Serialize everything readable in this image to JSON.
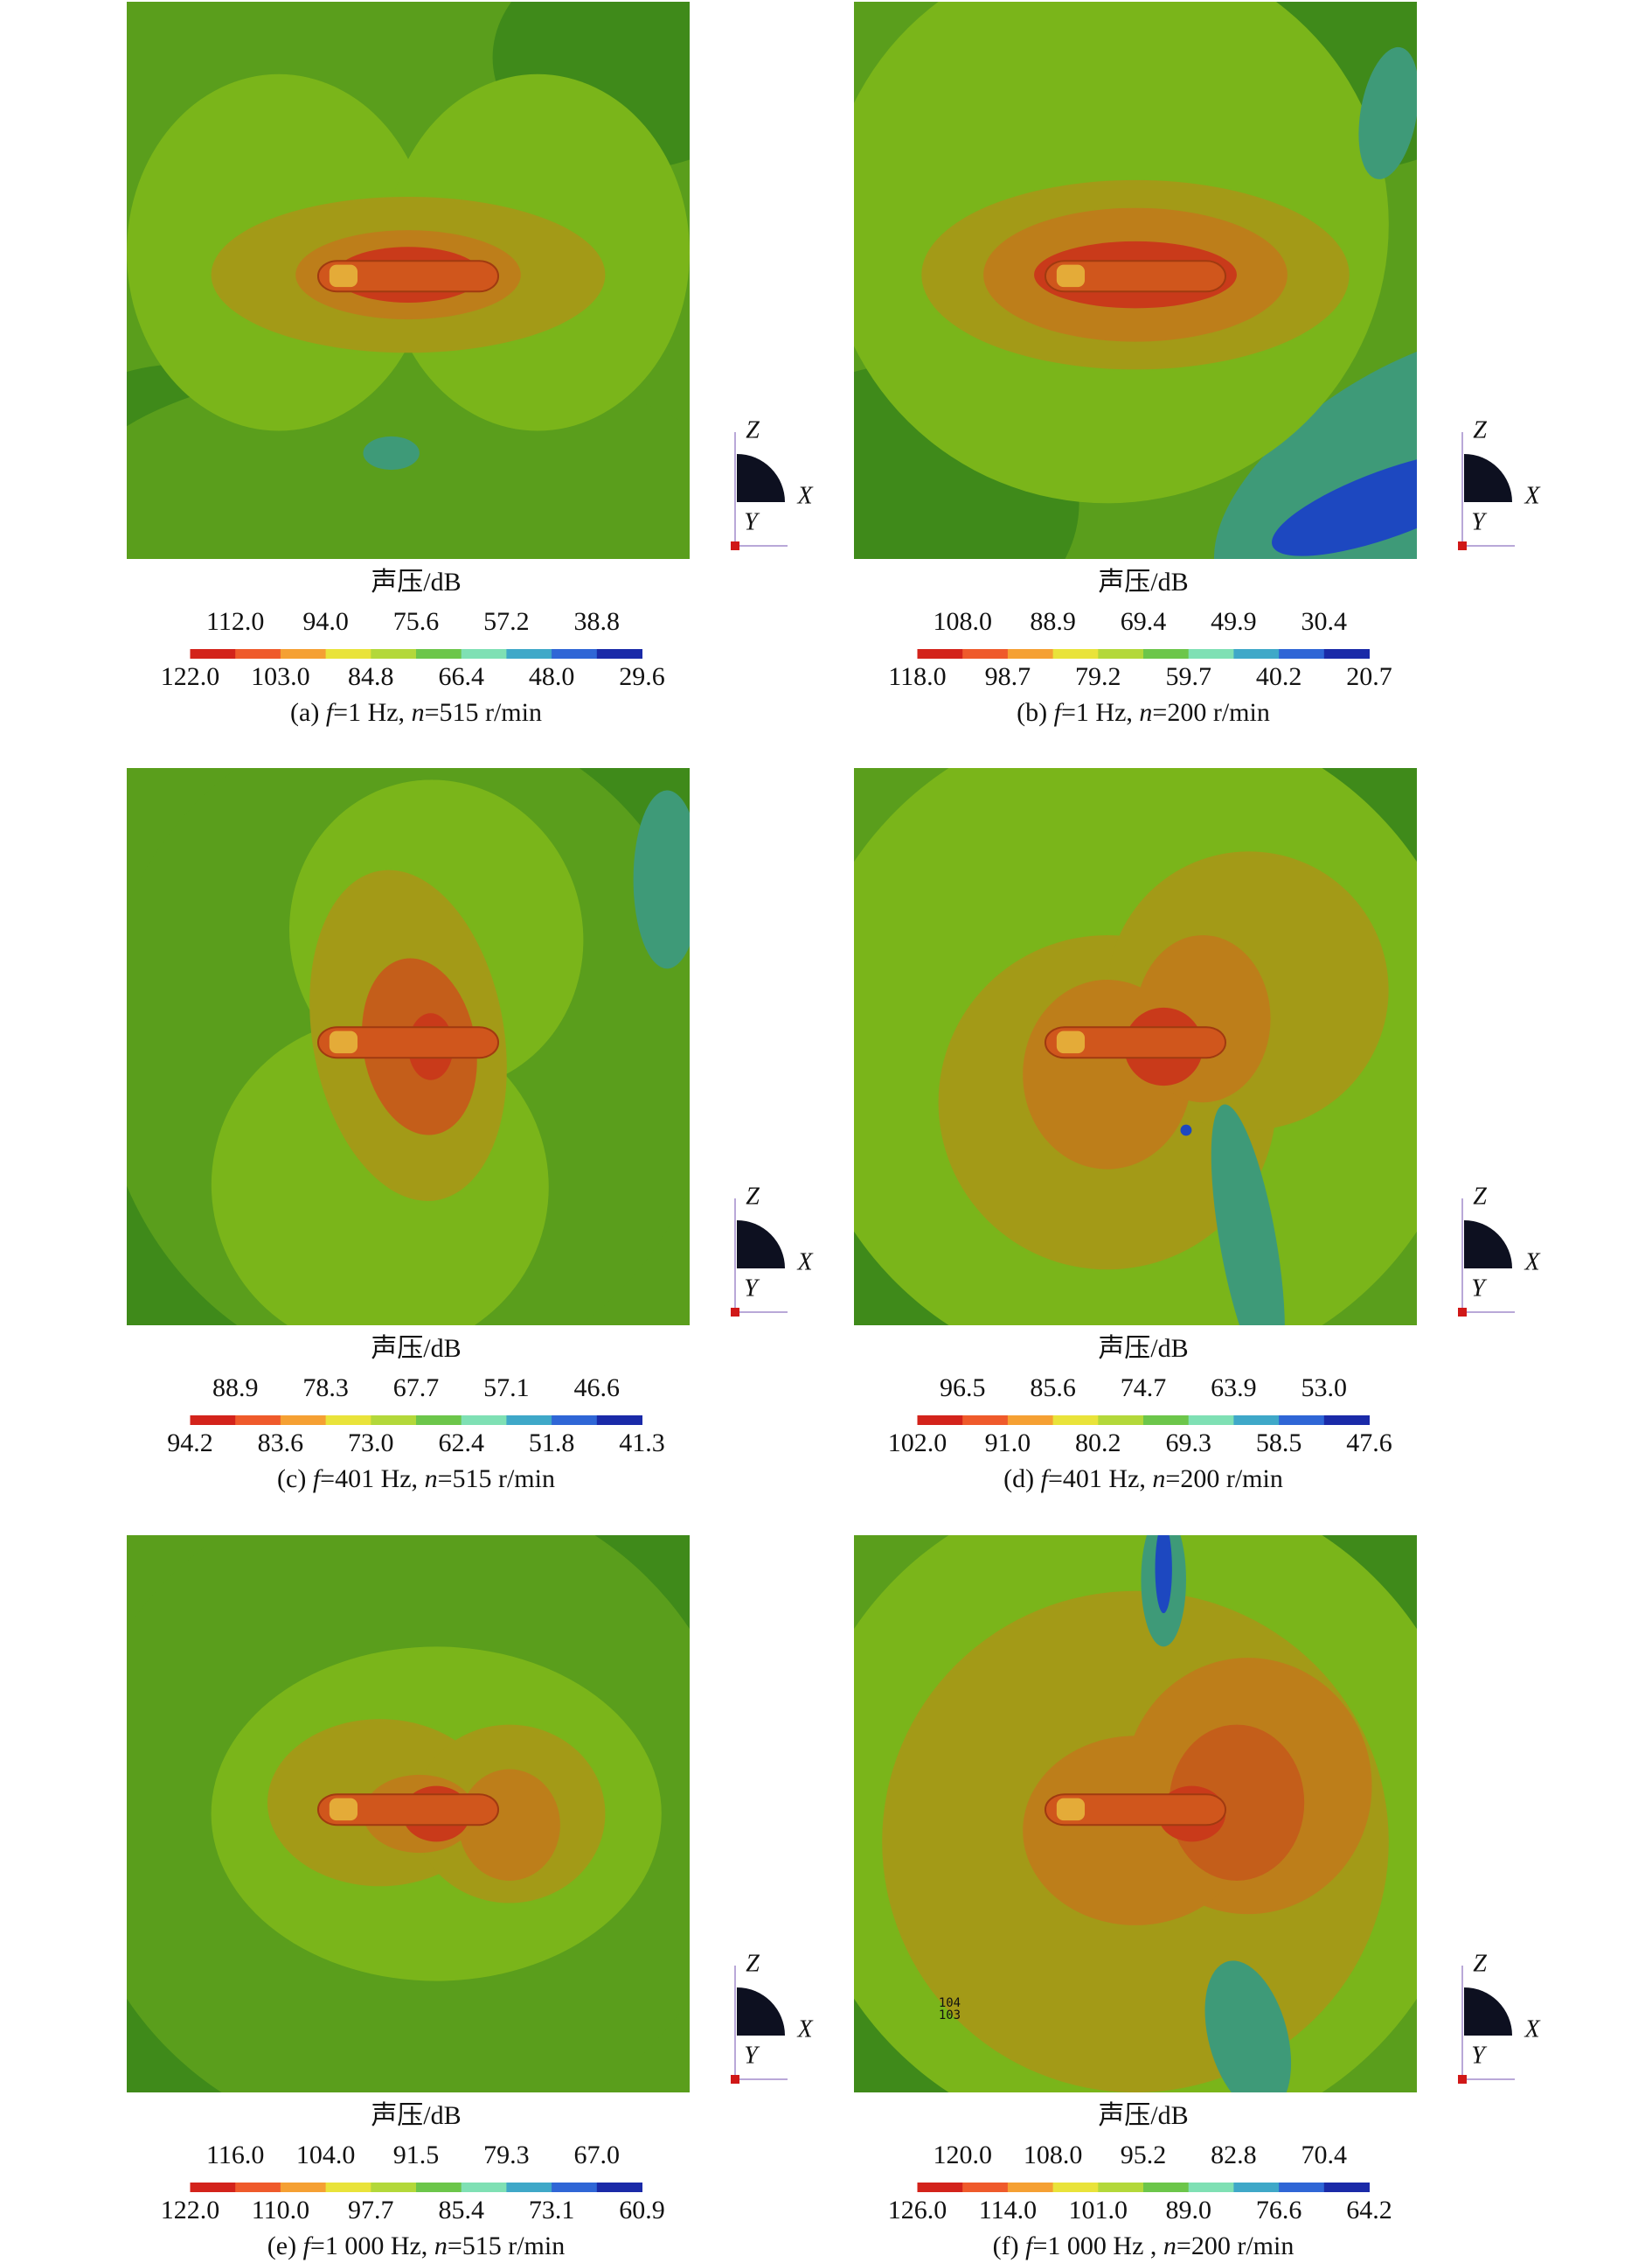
{
  "triad": {
    "z": "Z",
    "x": "X",
    "y": "Y"
  },
  "panels": [
    {
      "colorbar": {
        "title": "声压/dB",
        "upper": [
          "112.0",
          "94.0",
          "75.6",
          "57.2",
          "38.8"
        ],
        "lower": [
          "122.0",
          "103.0",
          "84.8",
          "66.4",
          "48.0",
          "29.6"
        ]
      },
      "caption": [
        {
          "text": "(a) "
        },
        {
          "text": "f",
          "italic": true
        },
        {
          "text": "=1 Hz, "
        },
        {
          "text": "n",
          "italic": true
        },
        {
          "text": "=515 r/min"
        }
      ]
    },
    {
      "colorbar": {
        "title": "声压/dB",
        "upper": [
          "108.0",
          "88.9",
          "69.4",
          "49.9",
          "30.4"
        ],
        "lower": [
          "118.0",
          "98.7",
          "79.2",
          "59.7",
          "40.2",
          "20.7"
        ]
      },
      "caption": [
        {
          "text": "(b) "
        },
        {
          "text": "f",
          "italic": true
        },
        {
          "text": "=1 Hz, "
        },
        {
          "text": "n",
          "italic": true
        },
        {
          "text": "=200 r/min"
        }
      ]
    },
    {
      "colorbar": {
        "title": "声压/dB",
        "upper": [
          "88.9",
          "78.3",
          "67.7",
          "57.1",
          "46.6"
        ],
        "lower": [
          "94.2",
          "83.6",
          "73.0",
          "62.4",
          "51.8",
          "41.3"
        ]
      },
      "caption": [
        {
          "text": "(c) "
        },
        {
          "text": "f",
          "italic": true
        },
        {
          "text": "=401 Hz, "
        },
        {
          "text": "n",
          "italic": true
        },
        {
          "text": "=515 r/min"
        }
      ]
    },
    {
      "colorbar": {
        "title": "声压/dB",
        "upper": [
          "96.5",
          "85.6",
          "74.7",
          "63.9",
          "53.0"
        ],
        "lower": [
          "102.0",
          "91.0",
          "80.2",
          "69.3",
          "58.5",
          "47.6"
        ]
      },
      "caption": [
        {
          "text": "(d) "
        },
        {
          "text": "f",
          "italic": true
        },
        {
          "text": "=401 Hz, "
        },
        {
          "text": "n",
          "italic": true
        },
        {
          "text": "=200 r/min"
        }
      ]
    },
    {
      "colorbar": {
        "title": "声压/dB",
        "upper": [
          "116.0",
          "104.0",
          "91.5",
          "79.3",
          "67.0"
        ],
        "lower": [
          "122.0",
          "110.0",
          "97.7",
          "85.4",
          "73.1",
          "60.9"
        ]
      },
      "caption": [
        {
          "text": "(e) "
        },
        {
          "text": "f",
          "italic": true
        },
        {
          "text": "=1 000 Hz, "
        },
        {
          "text": "n",
          "italic": true
        },
        {
          "text": "=515 r/min"
        }
      ]
    },
    {
      "colorbar": {
        "title": "声压/dB",
        "upper": [
          "120.0",
          "108.0",
          "95.2",
          "82.8",
          "70.4"
        ],
        "lower": [
          "126.0",
          "114.0",
          "101.0",
          "89.0",
          "76.6",
          "64.2"
        ]
      },
      "caption": [
        {
          "text": "(f) "
        },
        {
          "text": "f",
          "italic": true
        },
        {
          "text": "=1 000 Hz , "
        },
        {
          "text": "n",
          "italic": true
        },
        {
          "text": "=200 r/min"
        }
      ],
      "annotations": [
        "104",
        "103"
      ]
    }
  ]
}
